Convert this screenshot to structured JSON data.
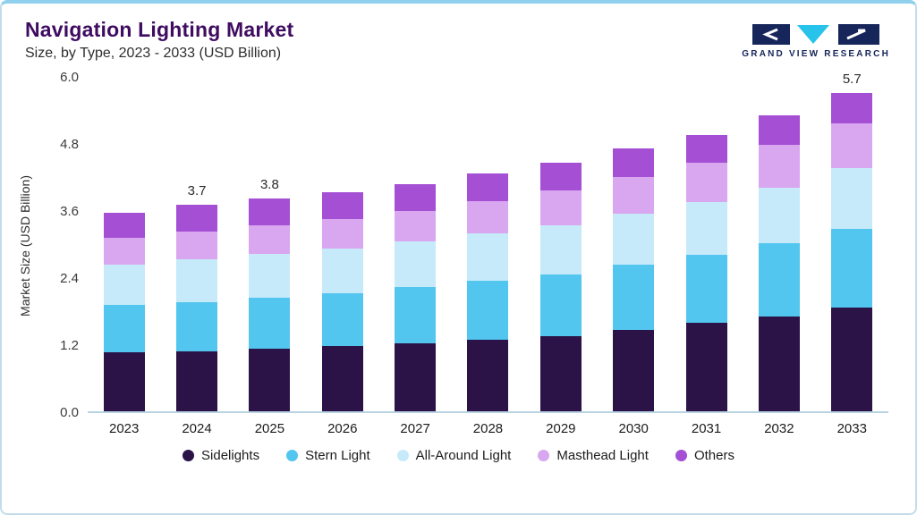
{
  "header": {
    "title": "Navigation Lighting Market",
    "subtitle": "Size, by Type, 2023 - 2033 (USD Billion)",
    "logo_text": "GRAND VIEW RESEARCH"
  },
  "chart_data": {
    "type": "bar",
    "stacked": true,
    "title": "Navigation Lighting Market Size, by Type, 2023 - 2033 (USD Billion)",
    "xlabel": "",
    "ylabel": "Market Size (USD Billion)",
    "ylim": [
      0,
      6.0
    ],
    "yticks": [
      "0.0",
      "1.2",
      "2.4",
      "3.6",
      "4.8",
      "6.0"
    ],
    "grid": false,
    "legend_position": "bottom",
    "categories": [
      "2023",
      "2024",
      "2025",
      "2026",
      "2027",
      "2028",
      "2029",
      "2030",
      "2031",
      "2032",
      "2033"
    ],
    "series": [
      {
        "name": "Sidelights",
        "color": "#2b1347",
        "values": [
          1.05,
          1.08,
          1.12,
          1.17,
          1.22,
          1.28,
          1.35,
          1.45,
          1.58,
          1.7,
          1.85
        ]
      },
      {
        "name": "Stern Light",
        "color": "#53c6f0",
        "values": [
          0.85,
          0.88,
          0.92,
          0.95,
          1.0,
          1.05,
          1.1,
          1.17,
          1.22,
          1.3,
          1.42
        ]
      },
      {
        "name": "All-Around Light",
        "color": "#c7eafa",
        "values": [
          0.72,
          0.76,
          0.78,
          0.8,
          0.82,
          0.85,
          0.88,
          0.92,
          0.95,
          1.0,
          1.08
        ]
      },
      {
        "name": "Masthead Light",
        "color": "#d9a7ef",
        "values": [
          0.48,
          0.5,
          0.5,
          0.52,
          0.55,
          0.58,
          0.62,
          0.66,
          0.7,
          0.76,
          0.8
        ]
      },
      {
        "name": "Others",
        "color": "#a44fd4",
        "values": [
          0.45,
          0.48,
          0.48,
          0.48,
          0.48,
          0.49,
          0.5,
          0.5,
          0.5,
          0.54,
          0.55
        ]
      }
    ],
    "bar_labels": {
      "2024": "3.7",
      "2025": "3.8",
      "2033": "5.7"
    },
    "totals": [
      3.55,
      3.7,
      3.8,
      3.92,
      4.07,
      4.25,
      4.45,
      4.7,
      4.95,
      5.3,
      5.7
    ]
  },
  "colors": {
    "title": "#3f0c61",
    "accent_border": "#8fd0ec",
    "axis_line": "#b9d3e2",
    "logo_navy": "#16255a",
    "logo_cyan": "#27c3ea"
  }
}
